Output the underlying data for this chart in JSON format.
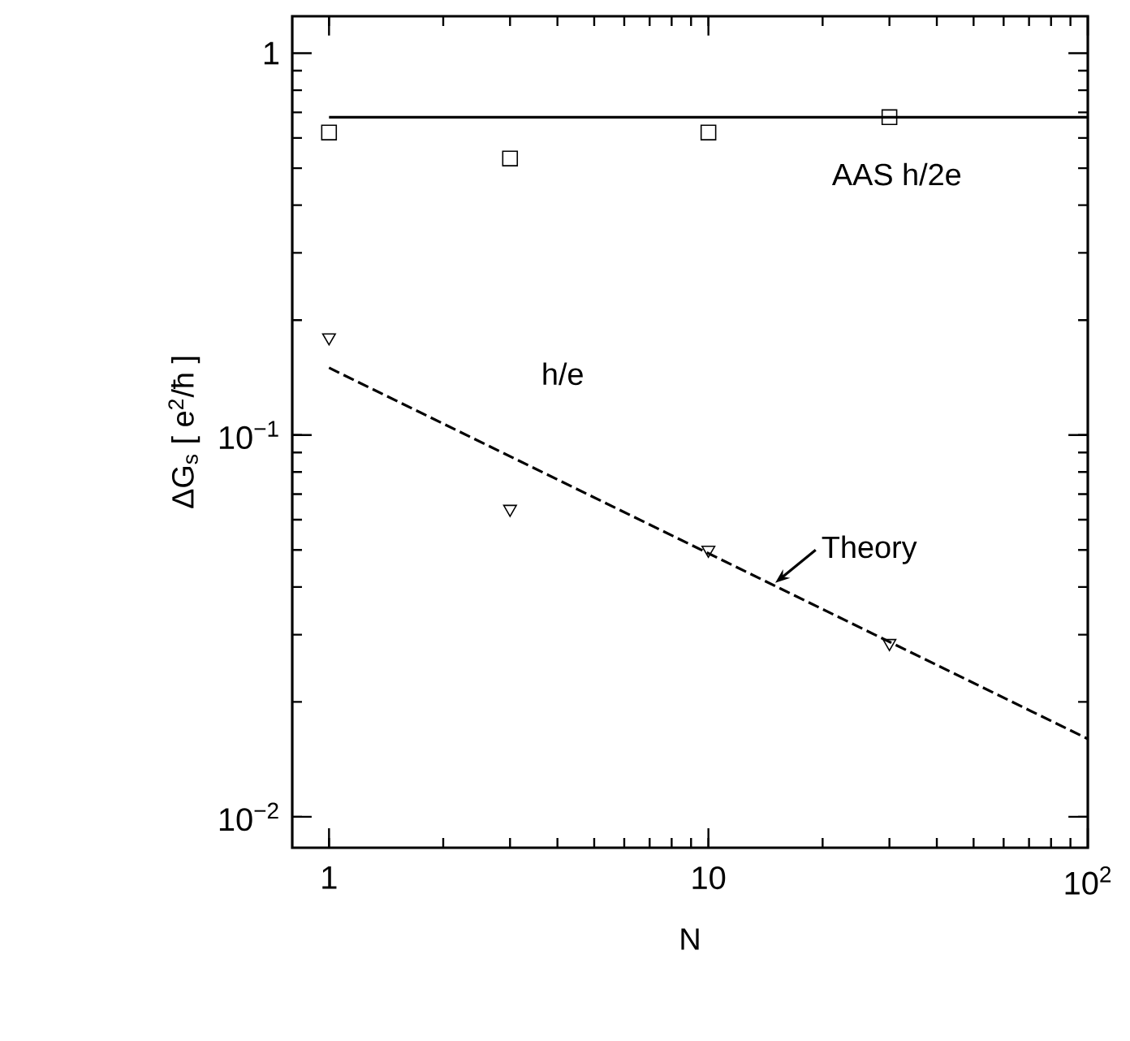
{
  "chart_data": {
    "type": "scatter",
    "xlabel": "N",
    "ylabel": "ΔG$_{s}$ [ e$^{2}$/ħ ]",
    "log": "xy",
    "xlim": [
      0.8,
      100
    ],
    "ylim": [
      0.0083,
      1.25
    ],
    "xticks": [
      1,
      10,
      {
        "value": 100,
        "label": "10$^{2}$"
      }
    ],
    "yticks": [
      {
        "value": 0.01,
        "label": "10$^{−2}$"
      },
      {
        "value": 0.1,
        "label": "10$^{−1}$"
      },
      1
    ],
    "grid": false,
    "series": [
      {
        "marker": "square",
        "color": "#000000",
        "x": [
          1,
          3,
          10,
          30
        ],
        "values": [
          0.62,
          0.53,
          0.62,
          0.68
        ]
      },
      {
        "marker": "triangle",
        "color": "#000000",
        "x": [
          1,
          3,
          10,
          30
        ],
        "values": [
          0.18,
          0.064,
          0.05,
          0.0285
        ]
      },
      {
        "type": "line",
        "line_style": "solid",
        "color": "#000000",
        "x": [
          1,
          100
        ],
        "values": [
          0.68,
          0.68
        ]
      },
      {
        "type": "line",
        "line_style": "dashed",
        "color": "#000000",
        "x": [
          1,
          100
        ],
        "values": [
          0.15,
          0.016
        ]
      }
    ],
    "annotations": [
      "AAS h/2e",
      "h/e",
      {
        "text": "Theory",
        "x": 15,
        "y": 0.041
      }
    ]
  }
}
